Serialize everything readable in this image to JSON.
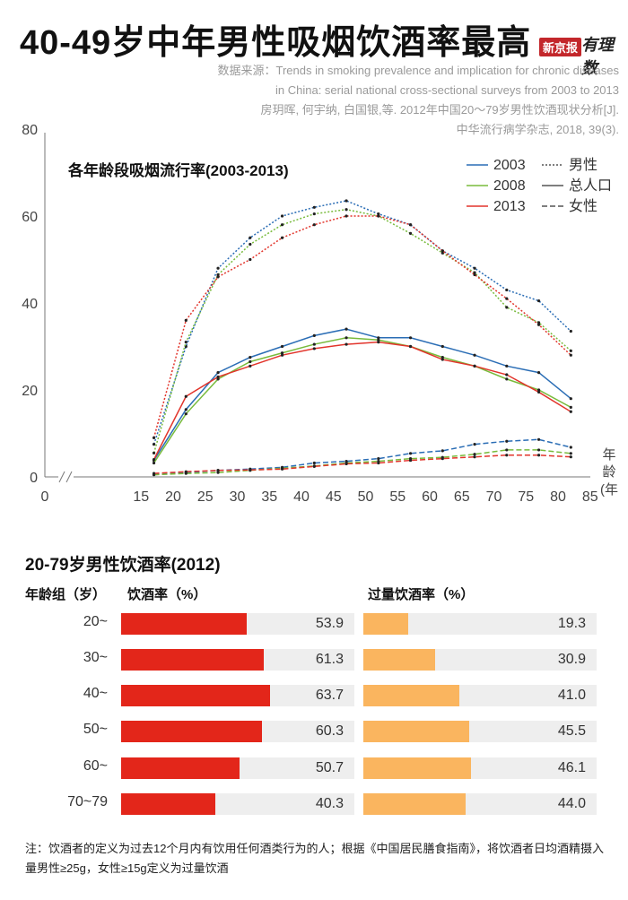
{
  "title": "40-49岁中年男性吸烟饮酒率最高",
  "brand": {
    "tag": "新京报",
    "name": "有理数"
  },
  "source": [
    "数据来源：Trends in smoking prevalence and implication for chronic diseases",
    "in China: serial national cross-sectional surveys from 2003 to 2013",
    "房玥晖, 何宇纳, 白国银,等. 2012年中国20～79岁男性饮酒现状分析[J].",
    "中华流行病学杂志, 2018, 39(3)."
  ],
  "colors": {
    "y2003": "#2a6db5",
    "y2008": "#78bb3c",
    "y2013": "#e2342b",
    "drink": "#e3261a",
    "heavy": "#fab55f",
    "track": "#eeeeee"
  },
  "chart_data": [
    {
      "type": "line",
      "title": "各年龄段吸烟流行率(2003-2013)",
      "xlabel": "年龄(年)",
      "ylabel": "",
      "xlim": [
        0,
        85
      ],
      "ylim": [
        0,
        80
      ],
      "x_ticks": [
        "0",
        "15",
        "20",
        "25",
        "30",
        "35",
        "40",
        "45",
        "50",
        "55",
        "60",
        "65",
        "70",
        "75",
        "80",
        "85"
      ],
      "y_ticks": [
        "0",
        "20",
        "40",
        "60",
        "80"
      ],
      "x": [
        17,
        22,
        27,
        32,
        37,
        42,
        47,
        52,
        57,
        62,
        67,
        72,
        77,
        82
      ],
      "legend": {
        "years": [
          "2003",
          "2008",
          "2013"
        ],
        "styles": [
          "男性",
          "总人口",
          "女性"
        ]
      },
      "series": [
        {
          "name": "2003 男性",
          "year": "2003",
          "style": "dotted",
          "values": [
            7.5,
            30,
            48,
            55,
            60,
            62,
            63.5,
            60.5,
            58,
            52,
            48,
            43,
            40.5,
            33.5
          ]
        },
        {
          "name": "2008 男性",
          "year": "2008",
          "style": "dotted",
          "values": [
            5.5,
            31,
            46.5,
            53.5,
            58,
            60.5,
            61.5,
            60,
            56,
            51.5,
            47,
            39,
            35.5,
            29
          ]
        },
        {
          "name": "2013 男性",
          "year": "2013",
          "style": "dotted",
          "values": [
            9,
            36,
            46,
            50,
            55,
            58,
            60,
            60,
            58,
            52,
            46.5,
            41,
            35,
            28
          ]
        },
        {
          "name": "2003 总人口",
          "year": "2003",
          "style": "solid",
          "values": [
            3.8,
            15.5,
            24,
            27.5,
            30,
            32.5,
            34,
            32,
            32,
            30,
            28,
            25.5,
            24,
            18
          ]
        },
        {
          "name": "2008 总人口",
          "year": "2008",
          "style": "solid",
          "values": [
            3.2,
            14.5,
            22.5,
            26.5,
            28.5,
            30.5,
            32,
            31.5,
            30,
            27.5,
            25.5,
            22.5,
            20,
            16
          ]
        },
        {
          "name": "2013 总人口",
          "year": "2013",
          "style": "solid",
          "values": [
            4,
            18.5,
            23,
            25.5,
            28,
            29.5,
            30.5,
            31,
            30,
            27,
            25.5,
            23.5,
            19.5,
            15
          ]
        },
        {
          "name": "2003 女性",
          "year": "2003",
          "style": "dashed",
          "values": [
            0.5,
            1,
            1.5,
            1.8,
            2.2,
            3.2,
            3.6,
            4.2,
            5.4,
            6,
            7.5,
            8.2,
            8.6,
            6.8
          ]
        },
        {
          "name": "2008 女性",
          "year": "2008",
          "style": "dashed",
          "values": [
            0.5,
            0.8,
            1,
            1.5,
            2,
            2.5,
            3.2,
            3.6,
            4.2,
            4.5,
            5.2,
            6.2,
            6.2,
            5.4
          ]
        },
        {
          "name": "2013 女性",
          "year": "2013",
          "style": "dashed",
          "values": [
            0.8,
            1.2,
            1.5,
            1.6,
            1.8,
            2.4,
            3,
            3.2,
            3.8,
            4.2,
            4.6,
            5,
            5,
            4.6
          ]
        }
      ]
    },
    {
      "type": "bar",
      "title": "20-79岁男性饮酒率(2012)",
      "group_header": "年龄组（岁）",
      "categories": [
        "20~",
        "30~",
        "40~",
        "50~",
        "60~",
        "70~79"
      ],
      "series": [
        {
          "name": "饮酒率（%）",
          "values": [
            "53.9",
            "61.3",
            "63.7",
            "60.3",
            "50.7",
            "40.3"
          ]
        },
        {
          "name": "过量饮酒率（%）",
          "values": [
            "19.3",
            "30.9",
            "41.0",
            "45.5",
            "46.1",
            "44.0"
          ]
        }
      ],
      "ylim": [
        0,
        100
      ]
    }
  ],
  "note": "注：饮酒者的定义为过去12个月内有饮用任何酒类行为的人；根据《中国居民膳食指南》，将饮酒者日均酒精摄入量男性≥25g，女性≥15g定义为过量饮酒"
}
